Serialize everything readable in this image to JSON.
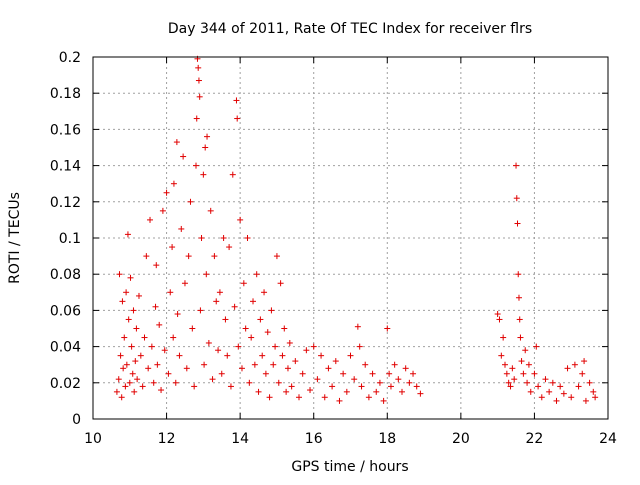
{
  "chart_data": {
    "type": "scatter",
    "title": "Day 344 of 2011, Rate Of TEC Index for receiver flrs",
    "xlabel": "GPS time / hours",
    "ylabel": "ROTI / TECUs",
    "xlim": [
      10,
      24
    ],
    "ylim": [
      0,
      0.2
    ],
    "x_ticks": [
      10,
      12,
      14,
      16,
      18,
      20,
      22,
      24
    ],
    "x_tick_labels": [
      "10",
      "12",
      "14",
      "16",
      "18",
      "20",
      "22",
      "24"
    ],
    "y_ticks": [
      0,
      0.02,
      0.04,
      0.06,
      0.08,
      0.1,
      0.12,
      0.14,
      0.16,
      0.18,
      0.2
    ],
    "y_tick_labels": [
      "0",
      "0.02",
      "0.04",
      "0.06",
      "0.08",
      "0.1",
      "0.12",
      "0.14",
      "0.16",
      "0.18",
      "0.2"
    ],
    "grid": true,
    "marker": "+",
    "series": [
      {
        "name": "ROTI",
        "color": "#e00000",
        "points": [
          [
            10.65,
            0.015
          ],
          [
            10.7,
            0.022
          ],
          [
            10.72,
            0.08
          ],
          [
            10.75,
            0.035
          ],
          [
            10.78,
            0.012
          ],
          [
            10.8,
            0.065
          ],
          [
            10.82,
            0.028
          ],
          [
            10.85,
            0.045
          ],
          [
            10.88,
            0.018
          ],
          [
            10.9,
            0.07
          ],
          [
            10.92,
            0.03
          ],
          [
            10.95,
            0.102
          ],
          [
            10.97,
            0.055
          ],
          [
            11.0,
            0.02
          ],
          [
            11.02,
            0.078
          ],
          [
            11.05,
            0.04
          ],
          [
            11.08,
            0.025
          ],
          [
            11.1,
            0.06
          ],
          [
            11.12,
            0.015
          ],
          [
            11.15,
            0.032
          ],
          [
            11.18,
            0.05
          ],
          [
            11.2,
            0.022
          ],
          [
            11.25,
            0.068
          ],
          [
            11.3,
            0.035
          ],
          [
            11.35,
            0.018
          ],
          [
            11.4,
            0.045
          ],
          [
            11.45,
            0.09
          ],
          [
            11.5,
            0.028
          ],
          [
            11.55,
            0.11
          ],
          [
            11.6,
            0.04
          ],
          [
            11.65,
            0.02
          ],
          [
            11.7,
            0.062
          ],
          [
            11.72,
            0.085
          ],
          [
            11.75,
            0.03
          ],
          [
            11.8,
            0.052
          ],
          [
            11.85,
            0.016
          ],
          [
            11.9,
            0.115
          ],
          [
            11.95,
            0.038
          ],
          [
            12.0,
            0.125
          ],
          [
            12.05,
            0.025
          ],
          [
            12.1,
            0.07
          ],
          [
            12.15,
            0.095
          ],
          [
            12.18,
            0.045
          ],
          [
            12.2,
            0.13
          ],
          [
            12.25,
            0.02
          ],
          [
            12.28,
            0.153
          ],
          [
            12.3,
            0.058
          ],
          [
            12.35,
            0.035
          ],
          [
            12.4,
            0.105
          ],
          [
            12.45,
            0.145
          ],
          [
            12.5,
            0.075
          ],
          [
            12.55,
            0.028
          ],
          [
            12.6,
            0.09
          ],
          [
            12.65,
            0.12
          ],
          [
            12.7,
            0.05
          ],
          [
            12.75,
            0.018
          ],
          [
            12.8,
            0.14
          ],
          [
            12.82,
            0.166
          ],
          [
            12.84,
            0.199
          ],
          [
            12.86,
            0.194
          ],
          [
            12.88,
            0.187
          ],
          [
            12.9,
            0.178
          ],
          [
            12.92,
            0.06
          ],
          [
            12.95,
            0.1
          ],
          [
            13.0,
            0.135
          ],
          [
            13.02,
            0.03
          ],
          [
            13.05,
            0.15
          ],
          [
            13.08,
            0.08
          ],
          [
            13.1,
            0.156
          ],
          [
            13.15,
            0.042
          ],
          [
            13.2,
            0.115
          ],
          [
            13.25,
            0.022
          ],
          [
            13.3,
            0.09
          ],
          [
            13.35,
            0.065
          ],
          [
            13.4,
            0.038
          ],
          [
            13.45,
            0.07
          ],
          [
            13.5,
            0.025
          ],
          [
            13.55,
            0.1
          ],
          [
            13.6,
            0.055
          ],
          [
            13.65,
            0.035
          ],
          [
            13.7,
            0.095
          ],
          [
            13.75,
            0.018
          ],
          [
            13.8,
            0.135
          ],
          [
            13.85,
            0.062
          ],
          [
            13.9,
            0.176
          ],
          [
            13.92,
            0.166
          ],
          [
            13.95,
            0.04
          ],
          [
            14.0,
            0.11
          ],
          [
            14.05,
            0.028
          ],
          [
            14.1,
            0.075
          ],
          [
            14.15,
            0.05
          ],
          [
            14.2,
            0.1
          ],
          [
            14.25,
            0.02
          ],
          [
            14.3,
            0.045
          ],
          [
            14.35,
            0.065
          ],
          [
            14.4,
            0.03
          ],
          [
            14.45,
            0.08
          ],
          [
            14.5,
            0.015
          ],
          [
            14.55,
            0.055
          ],
          [
            14.6,
            0.035
          ],
          [
            14.65,
            0.07
          ],
          [
            14.7,
            0.025
          ],
          [
            14.75,
            0.048
          ],
          [
            14.8,
            0.012
          ],
          [
            14.85,
            0.06
          ],
          [
            14.9,
            0.03
          ],
          [
            14.95,
            0.04
          ],
          [
            15.0,
            0.09
          ],
          [
            15.05,
            0.02
          ],
          [
            15.1,
            0.075
          ],
          [
            15.15,
            0.035
          ],
          [
            15.2,
            0.05
          ],
          [
            15.25,
            0.015
          ],
          [
            15.3,
            0.028
          ],
          [
            15.35,
            0.042
          ],
          [
            15.4,
            0.018
          ],
          [
            15.5,
            0.032
          ],
          [
            15.6,
            0.012
          ],
          [
            15.7,
            0.025
          ],
          [
            15.8,
            0.038
          ],
          [
            15.9,
            0.016
          ],
          [
            16.0,
            0.04
          ],
          [
            16.1,
            0.022
          ],
          [
            16.2,
            0.035
          ],
          [
            16.3,
            0.012
          ],
          [
            16.4,
            0.028
          ],
          [
            16.5,
            0.018
          ],
          [
            16.6,
            0.032
          ],
          [
            16.7,
            0.01
          ],
          [
            16.8,
            0.025
          ],
          [
            16.9,
            0.015
          ],
          [
            17.0,
            0.035
          ],
          [
            17.1,
            0.022
          ],
          [
            17.2,
            0.051
          ],
          [
            17.25,
            0.04
          ],
          [
            17.3,
            0.018
          ],
          [
            17.4,
            0.03
          ],
          [
            17.5,
            0.012
          ],
          [
            17.6,
            0.025
          ],
          [
            17.7,
            0.015
          ],
          [
            17.8,
            0.02
          ],
          [
            17.9,
            0.01
          ],
          [
            18.0,
            0.05
          ],
          [
            18.05,
            0.025
          ],
          [
            18.1,
            0.018
          ],
          [
            18.2,
            0.03
          ],
          [
            18.3,
            0.022
          ],
          [
            18.4,
            0.015
          ],
          [
            18.5,
            0.028
          ],
          [
            18.6,
            0.02
          ],
          [
            18.7,
            0.025
          ],
          [
            18.8,
            0.018
          ],
          [
            18.9,
            0.014
          ],
          [
            21.0,
            0.058
          ],
          [
            21.05,
            0.055
          ],
          [
            21.1,
            0.035
          ],
          [
            21.15,
            0.045
          ],
          [
            21.2,
            0.03
          ],
          [
            21.25,
            0.025
          ],
          [
            21.3,
            0.02
          ],
          [
            21.35,
            0.018
          ],
          [
            21.4,
            0.028
          ],
          [
            21.45,
            0.022
          ],
          [
            21.5,
            0.14
          ],
          [
            21.52,
            0.122
          ],
          [
            21.54,
            0.108
          ],
          [
            21.56,
            0.08
          ],
          [
            21.58,
            0.067
          ],
          [
            21.6,
            0.055
          ],
          [
            21.62,
            0.045
          ],
          [
            21.65,
            0.032
          ],
          [
            21.7,
            0.025
          ],
          [
            21.75,
            0.038
          ],
          [
            21.8,
            0.02
          ],
          [
            21.85,
            0.03
          ],
          [
            21.9,
            0.015
          ],
          [
            22.0,
            0.025
          ],
          [
            22.05,
            0.04
          ],
          [
            22.1,
            0.018
          ],
          [
            22.2,
            0.012
          ],
          [
            22.3,
            0.022
          ],
          [
            22.4,
            0.015
          ],
          [
            22.5,
            0.02
          ],
          [
            22.6,
            0.01
          ],
          [
            22.7,
            0.018
          ],
          [
            22.8,
            0.014
          ],
          [
            22.9,
            0.028
          ],
          [
            23.0,
            0.012
          ],
          [
            23.1,
            0.03
          ],
          [
            23.2,
            0.018
          ],
          [
            23.3,
            0.025
          ],
          [
            23.35,
            0.032
          ],
          [
            23.4,
            0.01
          ],
          [
            23.5,
            0.02
          ],
          [
            23.6,
            0.015
          ],
          [
            23.65,
            0.012
          ]
        ]
      }
    ]
  }
}
